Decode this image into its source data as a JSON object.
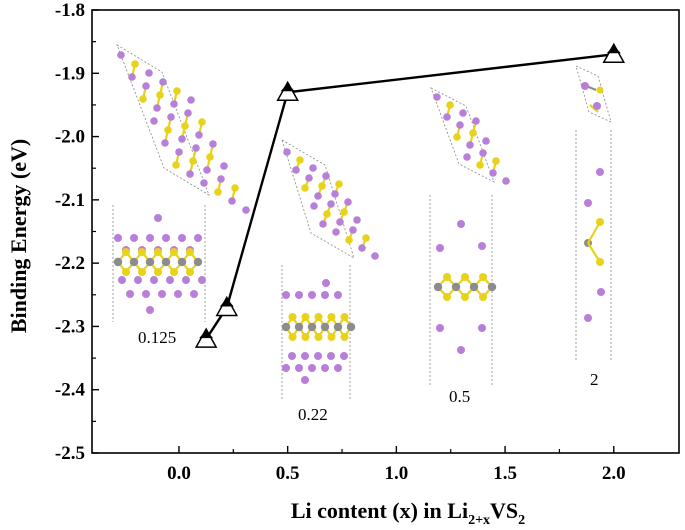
{
  "chart_data": {
    "type": "line",
    "x": [
      0.125,
      0.22,
      0.5,
      2.0
    ],
    "series": [
      {
        "values": [
          -2.32,
          -2.27,
          -1.93,
          -1.87
        ]
      }
    ],
    "xlabel": {
      "prefix": "Li content (x) in Li",
      "sub": "2+x",
      "mid": "VS",
      "sub2": "2"
    },
    "ylabel": "Binding Energy (eV)",
    "xlim": [
      -0.4,
      2.3
    ],
    "ylim": [
      -2.5,
      -1.8
    ],
    "xticks": [
      "0.0",
      "0.5",
      "1.0",
      "1.5",
      "2.0"
    ],
    "yticks": [
      "-1.8",
      "-1.9",
      "-2.0",
      "-2.1",
      "-2.2",
      "-2.3",
      "-2.4",
      "-2.5"
    ],
    "grid": false,
    "structure_labels": [
      "0.125",
      "0.22",
      "0.5",
      "2"
    ]
  },
  "colors": {
    "li_atom": "#b87fd8",
    "s_atom": "#e8d21a",
    "v_atom": "#8c8c8c",
    "line": "#000000"
  }
}
